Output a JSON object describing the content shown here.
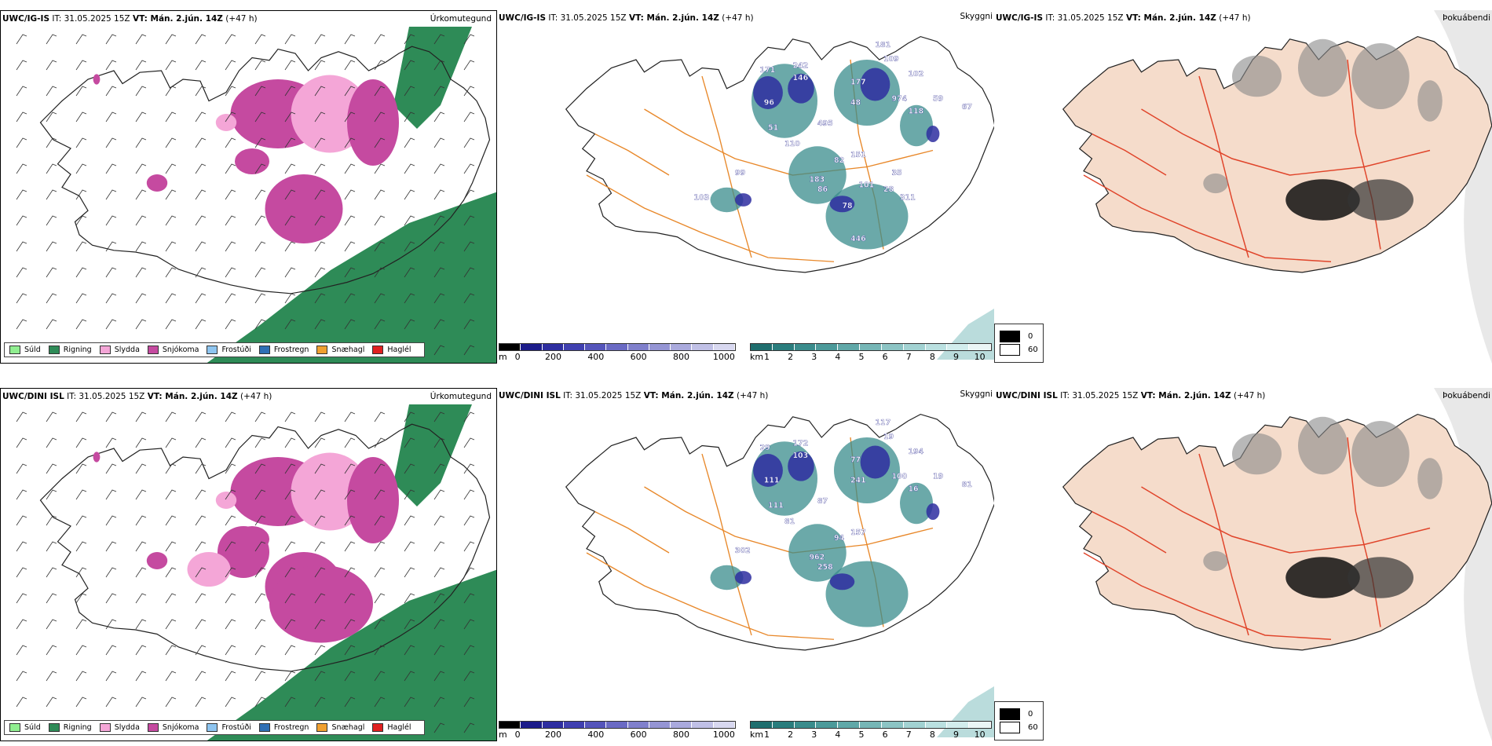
{
  "rows": [
    {
      "precip": {
        "model": "UWC/IG-IS",
        "it": "IT: 31.05.2025 15Z",
        "vt": "VT: Mán. 2.jún. 14Z",
        "lead": "(+47 h)",
        "title": "Úrkomutegund"
      },
      "cloud": {
        "model": "UWC/IG-IS",
        "it": "IT: 31.05.2025 15Z",
        "vt": "VT: Mán. 2.jún. 14Z",
        "lead": "(+47 h)",
        "title": "Skyggni",
        "labels": [
          "181",
          "109",
          "102",
          "242",
          "177",
          "171",
          "146",
          "974",
          "96",
          "48",
          "118",
          "59",
          "67",
          "51",
          "495",
          "110",
          "82",
          "151",
          "99",
          "183",
          "86",
          "101",
          "35",
          "78",
          "311",
          "28",
          "103",
          "446"
        ]
      },
      "fog": {
        "model": "UWC/IG-IS",
        "it": "IT: 31.05.2025 15Z",
        "vt": "VT: Mán. 2.jún. 14Z",
        "lead": "(+47 h)",
        "title": "Þokuábendi"
      }
    },
    {
      "precip": {
        "model": "UWC/DINI ISL",
        "it": "IT: 31.05.2025 15Z",
        "vt": "VT: Mán. 2.jún. 14Z",
        "lead": "(+47 h)",
        "title": "Úrkomutegund"
      },
      "cloud": {
        "model": "UWC/DINI ISL",
        "it": "IT: 31.05.2025 15Z",
        "vt": "VT: Mán. 2.jún. 14Z",
        "lead": "(+47 h)",
        "title": "Skyggni",
        "labels": [
          "117",
          "19",
          "194",
          "172",
          "77",
          "29",
          "103",
          "100",
          "111",
          "241",
          "16",
          "19",
          "81",
          "111",
          "87",
          "81",
          "94",
          "157",
          "302",
          "962",
          "258"
        ]
      },
      "fog": {
        "model": "UWC/DINI ISL",
        "it": "IT: 31.05.2025 15Z",
        "vt": "VT: Mán. 2.jún. 14Z",
        "lead": "(+47 h)",
        "title": "Þokuábendi"
      }
    }
  ],
  "precip_legend": [
    {
      "label": "Súld",
      "color": "#90ee90"
    },
    {
      "label": "Rigning",
      "color": "#2e8b57"
    },
    {
      "label": "Slydda",
      "color": "#f4a6d7"
    },
    {
      "label": "Snjókoma",
      "color": "#c54aa0"
    },
    {
      "label": "Frostúði",
      "color": "#8ec5f0"
    },
    {
      "label": "Frostregn",
      "color": "#2f6fb5"
    },
    {
      "label": "Snæhagl",
      "color": "#f0a030"
    },
    {
      "label": "Haglél",
      "color": "#e02020"
    }
  ],
  "cloud_base_scale": {
    "unit": "m",
    "ticks": [
      "0",
      "200",
      "400",
      "600",
      "800",
      "1000"
    ],
    "colors": [
      "#000000",
      "#1c1c8a",
      "#2e2ea0",
      "#4040b0",
      "#5555bb",
      "#6a6ac4",
      "#8080cc",
      "#9595d4",
      "#aaaadd",
      "#c0c0e6",
      "#d8d8f0"
    ]
  },
  "visibility_scale": {
    "unit": "km",
    "ticks": [
      "1",
      "2",
      "3",
      "4",
      "5",
      "6",
      "7",
      "8",
      "9",
      "10"
    ],
    "colors": [
      "#1f6e6e",
      "#2a7d7d",
      "#3a8c8c",
      "#4c9a9a",
      "#60a8a8",
      "#76b6b6",
      "#8cc4c4",
      "#a2d2d2",
      "#bae0e0",
      "#d2eded",
      "#eaf6f6"
    ]
  },
  "fog_legend": [
    {
      "label": "0",
      "color": "#000000"
    },
    {
      "label": "60",
      "color": "#ffffff"
    }
  ]
}
